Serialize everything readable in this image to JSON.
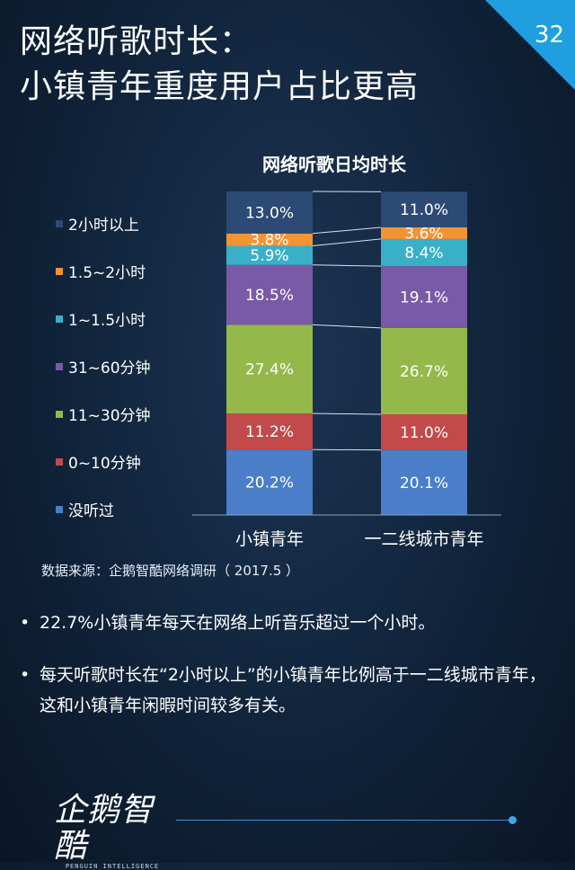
{
  "title": {
    "line1": "网络听歌时长：",
    "line2": "小镇青年重度用户占比更高"
  },
  "page_number": "32",
  "source": "数据来源：企鹅智酷网络调研（ 2017.5 ）",
  "bullets": [
    "22.7%小镇青年每天在网络上听音乐超过一个小时。",
    "每天听歌时长在“2小时以上”的小镇青年比例高于一二线城市青年，这和小镇青年闲暇时间较多有关。"
  ],
  "logo": {
    "text": "企鹅智酷",
    "subtext": "PENGUIN INTELLIGENCE"
  },
  "chart_data": {
    "type": "bar",
    "stacked": true,
    "title": "网络听歌日均时长",
    "categories": [
      "小镇青年",
      "一二线城市青年"
    ],
    "series": [
      {
        "name": "没听过",
        "values": [
          20.2,
          20.1
        ],
        "labels": [
          "20.2%",
          "20.1%"
        ],
        "color": "#4a7ec9"
      },
      {
        "name": "0~10分钟",
        "values": [
          11.2,
          11.0
        ],
        "labels": [
          "11.2%",
          "11.0%"
        ],
        "color": "#c24a4a"
      },
      {
        "name": "11~30分钟",
        "values": [
          27.4,
          26.7
        ],
        "labels": [
          "27.4%",
          "26.7%"
        ],
        "color": "#94b84a"
      },
      {
        "name": "31~60分钟",
        "values": [
          18.5,
          19.1
        ],
        "labels": [
          "18.5%",
          "19.1%"
        ],
        "color": "#7a5aa6"
      },
      {
        "name": "1~1.5小时",
        "values": [
          5.9,
          8.4
        ],
        "labels": [
          "5.9%",
          "8.4%"
        ],
        "color": "#3ab0c8"
      },
      {
        "name": "1.5~2小时",
        "values": [
          3.8,
          3.6
        ],
        "labels": [
          "3.8%",
          "3.6%"
        ],
        "color": "#f29433"
      },
      {
        "name": "2小时以上",
        "values": [
          13.0,
          11.0
        ],
        "labels": [
          "13.0%",
          "11.0%"
        ],
        "color": "#2d4a74"
      }
    ],
    "legend_position": "left",
    "ylim": [
      0,
      100
    ]
  }
}
